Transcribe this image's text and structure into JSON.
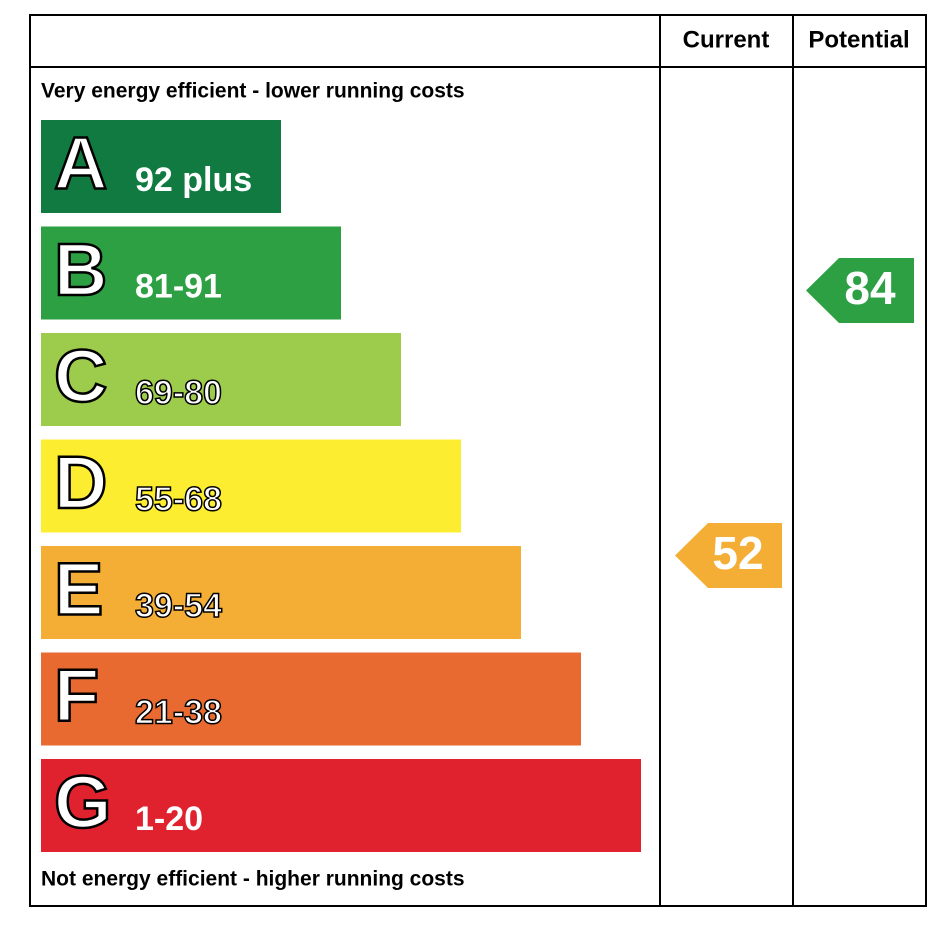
{
  "header": {
    "current": "Current",
    "potential": "Potential"
  },
  "top_note": "Very energy efficient - lower running costs",
  "bottom_note": "Not energy efficient - higher running costs",
  "bands": [
    {
      "letter": "A",
      "range": "92 plus",
      "color": "#117a41"
    },
    {
      "letter": "B",
      "range": "81-91",
      "color": "#2ca043"
    },
    {
      "letter": "C",
      "range": "69-80",
      "color": "#9dcb4b"
    },
    {
      "letter": "D",
      "range": "55-68",
      "color": "#fded31"
    },
    {
      "letter": "E",
      "range": "39-54",
      "color": "#f5ae35"
    },
    {
      "letter": "F",
      "range": "21-38",
      "color": "#e96a31"
    },
    {
      "letter": "G",
      "range": "1-20",
      "color": "#e0222e"
    }
  ],
  "current": {
    "value": 52,
    "color": "#f5ae35"
  },
  "potential": {
    "value": 84,
    "color": "#2ca043"
  }
}
